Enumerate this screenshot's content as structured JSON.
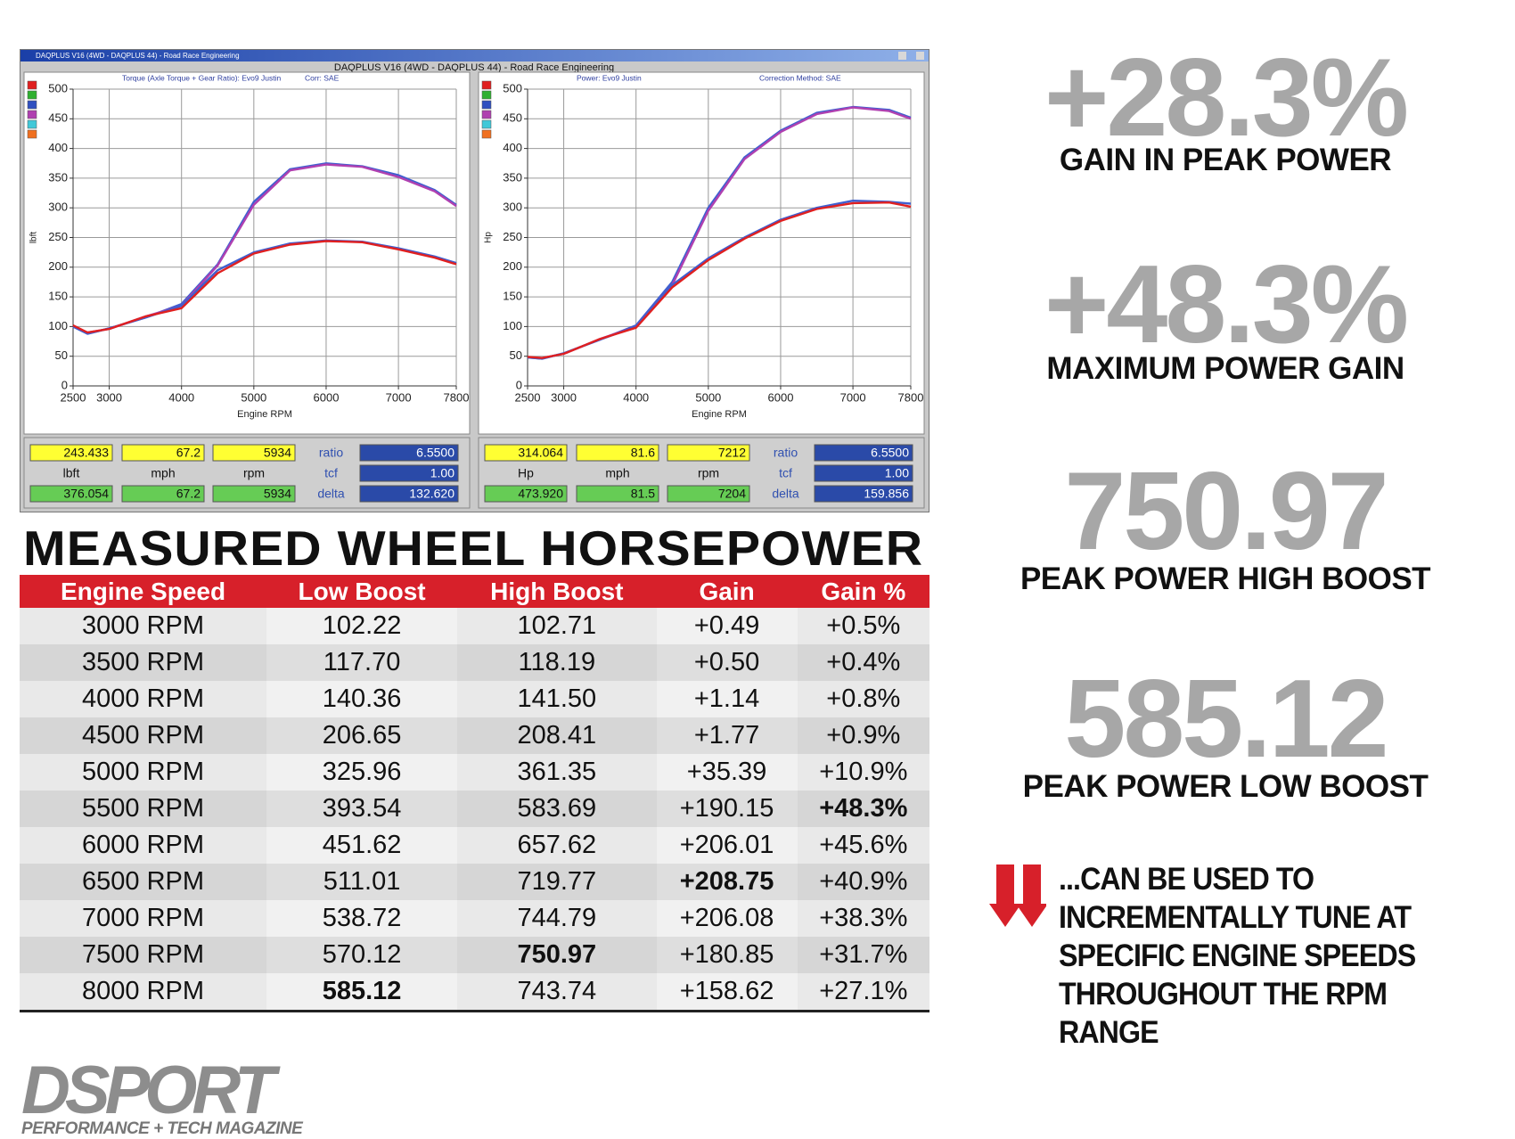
{
  "window": {
    "titlebar": "DAQPLUS V16 (4WD - DAQPLUS 44) - Road Race Engineering",
    "title": "DAQPLUS V16 (4WD - DAQPLUS 44) - Road Race Engineering"
  },
  "chart_data": [
    {
      "type": "line",
      "title": "Torque (Axle Torque + Gear Ratio): Evo9 Justin",
      "subtitle": "Corr: SAE",
      "x_label": "Engine RPM",
      "y_label": "lbft",
      "x": [
        2500,
        2700,
        3000,
        3500,
        4000,
        4500,
        5000,
        5500,
        6000,
        6500,
        7000,
        7500,
        7800
      ],
      "series": [
        {
          "color": "#3f5fd0",
          "values": [
            100,
            88,
            97,
            115,
            138,
            205,
            310,
            365,
            375,
            370,
            355,
            330,
            305
          ]
        },
        {
          "color": "#b040b0",
          "values": [
            100,
            90,
            96,
            117,
            135,
            203,
            305,
            363,
            373,
            369,
            352,
            328,
            303
          ]
        },
        {
          "color": "#3f5fd0",
          "values": [
            100,
            88,
            97,
            115,
            135,
            195,
            225,
            240,
            245,
            243,
            232,
            218,
            207
          ]
        },
        {
          "color": "#e02020",
          "values": [
            102,
            90,
            96,
            117,
            131,
            190,
            223,
            238,
            244,
            242,
            230,
            216,
            205
          ]
        }
      ],
      "xlim": [
        2500,
        7800
      ],
      "xticks": [
        2500,
        3000,
        4000,
        5000,
        6000,
        7000,
        7800
      ],
      "ylim": [
        0,
        500
      ],
      "yticks": [
        0,
        50,
        100,
        150,
        200,
        250,
        300,
        350,
        400,
        450,
        500
      ],
      "grid": true,
      "legend_colors": [
        "#e02020",
        "#30b030",
        "#3050c0",
        "#b040b0",
        "#40c8d8",
        "#f07020"
      ]
    },
    {
      "type": "line",
      "title": "Power: Evo9 Justin",
      "subtitle": "Correction Method: SAE",
      "x_label": "Engine RPM",
      "y_label": "Hp",
      "x": [
        2500,
        2700,
        3000,
        3500,
        4000,
        4500,
        5000,
        5500,
        6000,
        6500,
        7000,
        7500,
        7800
      ],
      "series": [
        {
          "color": "#3f5fd0",
          "values": [
            48,
            46,
            55,
            78,
            102,
            175,
            300,
            385,
            430,
            460,
            470,
            465,
            452
          ]
        },
        {
          "color": "#b040b0",
          "values": [
            48,
            47,
            54,
            79,
            100,
            170,
            295,
            382,
            428,
            458,
            469,
            463,
            450
          ]
        },
        {
          "color": "#3f5fd0",
          "values": [
            48,
            46,
            55,
            78,
            100,
            170,
            215,
            250,
            280,
            300,
            312,
            310,
            307
          ]
        },
        {
          "color": "#e02020",
          "values": [
            49,
            47,
            54,
            79,
            98,
            166,
            212,
            248,
            278,
            298,
            308,
            309,
            302
          ]
        }
      ],
      "xlim": [
        2500,
        7800
      ],
      "xticks": [
        2500,
        3000,
        4000,
        5000,
        6000,
        7000,
        7800
      ],
      "ylim": [
        0,
        500
      ],
      "yticks": [
        0,
        50,
        100,
        150,
        200,
        250,
        300,
        350,
        400,
        450,
        500
      ],
      "grid": true,
      "legend_colors": [
        "#e02020",
        "#30b030",
        "#3050c0",
        "#b040b0",
        "#40c8d8",
        "#f07020"
      ]
    }
  ],
  "readouts": [
    [
      [
        "243.433",
        "67.2",
        "5934",
        "ratio",
        "6.5500"
      ],
      [
        "lbft",
        "mph",
        "rpm",
        "tcf",
        "1.00"
      ],
      [
        "376.054",
        "67.2",
        "5934",
        "delta",
        "132.620"
      ]
    ],
    [
      [
        "314.064",
        "81.6",
        "7212",
        "ratio",
        "6.5500"
      ],
      [
        "Hp",
        "mph",
        "rpm",
        "tcf",
        "1.00"
      ],
      [
        "473.920",
        "81.5",
        "7204",
        "delta",
        "159.856"
      ]
    ]
  ],
  "table": {
    "title": "MEASURED WHEEL HORSEPOWER",
    "columns": [
      "Engine Speed",
      "Low Boost",
      "High Boost",
      "Gain",
      "Gain %"
    ],
    "rows": [
      [
        "3000 RPM",
        "102.22",
        "102.71",
        "+0.49",
        "+0.5%"
      ],
      [
        "3500 RPM",
        "117.70",
        "118.19",
        "+0.50",
        "+0.4%"
      ],
      [
        "4000 RPM",
        "140.36",
        "141.50",
        "+1.14",
        "+0.8%"
      ],
      [
        "4500 RPM",
        "206.65",
        "208.41",
        "+1.77",
        "+0.9%"
      ],
      [
        "5000 RPM",
        "325.96",
        "361.35",
        "+35.39",
        "+10.9%"
      ],
      [
        "5500 RPM",
        "393.54",
        "583.69",
        "+190.15",
        "+48.3%"
      ],
      [
        "6000 RPM",
        "451.62",
        "657.62",
        "+206.01",
        "+45.6%"
      ],
      [
        "6500 RPM",
        "511.01",
        "719.77",
        "+208.75",
        "+40.9%"
      ],
      [
        "7000 RPM",
        "538.72",
        "744.79",
        "+206.08",
        "+38.3%"
      ],
      [
        "7500 RPM",
        "570.12",
        "750.97",
        "+180.85",
        "+31.7%"
      ],
      [
        "8000 RPM",
        "585.12",
        "743.74",
        "+158.62",
        "+27.1%"
      ]
    ]
  },
  "stats": [
    {
      "value": "+28.3%",
      "label": "GAIN IN PEAK POWER"
    },
    {
      "value": "+48.3%",
      "label": "MAXIMUM POWER GAIN"
    },
    {
      "value": "750.97",
      "label": "PEAK POWER HIGH BOOST"
    },
    {
      "value": "585.12",
      "label": "PEAK POWER LOW BOOST"
    }
  ],
  "note": [
    "...CAN BE USED TO",
    "INCREMENTALLY TUNE AT",
    "SPECIFIC ENGINE SPEEDS",
    "THROUGHOUT THE RPM RANGE"
  ],
  "logo": {
    "name": "DSPORT",
    "tagline": "PERFORMANCE + TECH MAGAZINE"
  }
}
